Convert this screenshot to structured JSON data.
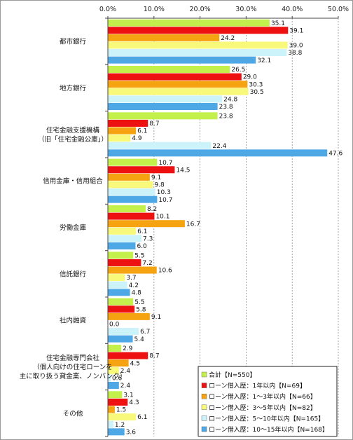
{
  "chart_data": {
    "type": "bar",
    "orientation": "horizontal",
    "xlim": [
      0,
      50
    ],
    "x_ticks": [
      "0.0%",
      "10.0%",
      "20.0%",
      "30.0%",
      "40.0%",
      "50.0%"
    ],
    "grid": "vertical dashed",
    "legend_position": "bottom-right",
    "categories": [
      [
        "都市銀行"
      ],
      [
        "地方銀行"
      ],
      [
        "住宅金融支援機構",
        "（旧「住宅金融公庫」）"
      ],
      [
        "信用金庫・信用組合"
      ],
      [
        "労働金庫"
      ],
      [
        "信託銀行"
      ],
      [
        "社内融資"
      ],
      [
        "住宅金融専門会社",
        "（個人向けの住宅ローンを",
        "主に取り扱う貸金業、ノンバンク）"
      ],
      [
        "その他"
      ]
    ],
    "series": [
      {
        "name": "合計【N=550】",
        "color": "#c4f04c",
        "values": [
          35.1,
          26.5,
          23.8,
          10.7,
          8.2,
          5.5,
          5.5,
          2.9,
          3.1
        ]
      },
      {
        "name": "ローン借入歴：1年以内【N=69】",
        "color": "#ee1111",
        "values": [
          39.1,
          29.0,
          8.7,
          14.5,
          10.1,
          7.2,
          5.8,
          8.7,
          4.3
        ]
      },
      {
        "name": "ローン借入歴：1～3年以内【N=66】",
        "color": "#f5a310",
        "values": [
          24.2,
          30.3,
          6.1,
          9.1,
          16.7,
          10.6,
          9.1,
          4.5,
          1.5
        ]
      },
      {
        "name": "ローン借入歴：3～5年以内【N=82】",
        "color": "#f8f87a",
        "values": [
          39.0,
          30.5,
          4.9,
          9.8,
          6.1,
          3.7,
          0.0,
          2.4,
          6.1
        ]
      },
      {
        "name": "ローン借入歴：5～10年以内【N=165】",
        "color": "#ccf2fa",
        "values": [
          38.8,
          24.8,
          22.4,
          10.3,
          7.3,
          4.2,
          6.7,
          0.6,
          1.2
        ]
      },
      {
        "name": "ローン借入歴：10～15年以内【N=168】",
        "color": "#4ea8e6",
        "values": [
          32.1,
          23.8,
          47.6,
          10.7,
          6.0,
          4.8,
          5.4,
          2.4,
          3.6
        ]
      }
    ],
    "value_labels": [
      [
        "35.1",
        "26.5",
        "23.8",
        "10.7",
        "8.2",
        "5.5",
        "5.5",
        "2.9",
        "3.1"
      ],
      [
        "39.1",
        "29.0",
        "8.7",
        "14.5",
        "10.1",
        "7.2",
        "5.8",
        "8.7",
        "4.3"
      ],
      [
        "24.2",
        "30.3",
        "6.1",
        "9.1",
        "16.7",
        "10.6",
        "9.1",
        "4.5",
        "1.5"
      ],
      [
        "39.0",
        "30.5",
        "4.9",
        "9.8",
        "6.1",
        "3.7",
        "0.0",
        "2.4",
        "6.1"
      ],
      [
        "38.8",
        "24.8",
        "22.4",
        "10.3",
        "7.3",
        "4.2",
        "6.7",
        "0.6",
        "1.2"
      ],
      [
        "32.1",
        "23.8",
        "47.6",
        "10.7",
        "6.0",
        "4.8",
        "5.4",
        "2.4",
        "3.6"
      ]
    ]
  }
}
